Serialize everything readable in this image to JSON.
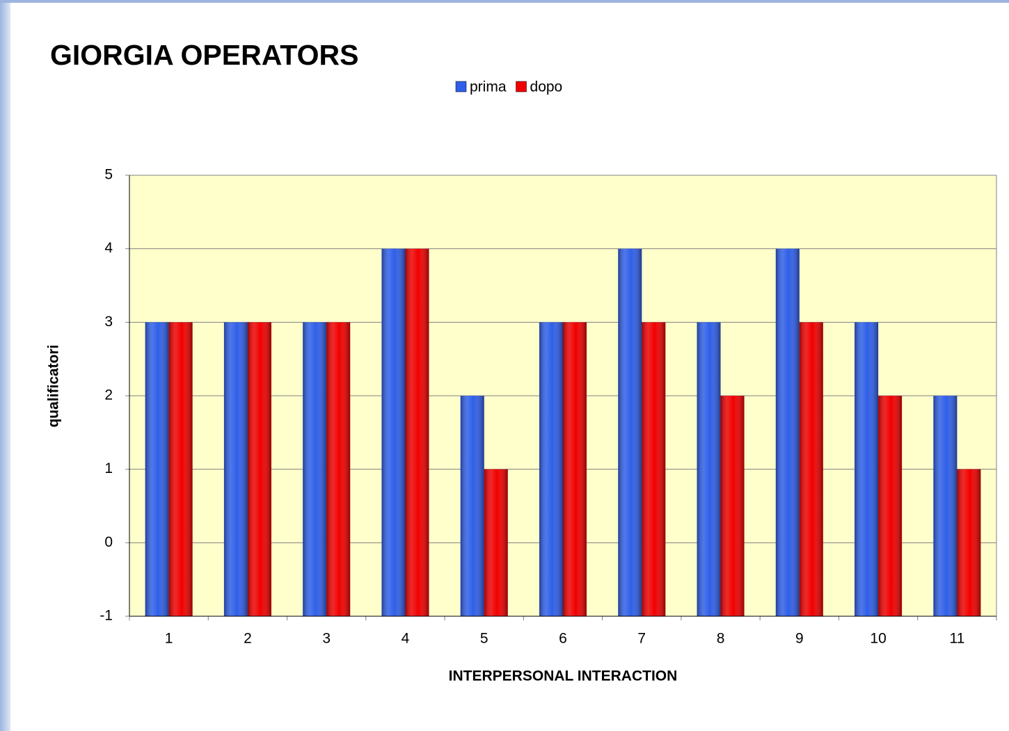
{
  "chart_data": {
    "type": "bar",
    "title": "GIORGIA  OPERATORS",
    "x_label": "INTERPERSONAL INTERACTION",
    "y_label": "qualificatori",
    "categories": [
      "1",
      "2",
      "3",
      "4",
      "5",
      "6",
      "7",
      "8",
      "9",
      "10",
      "11"
    ],
    "series": [
      {
        "name": "prima",
        "color": "#2f5fe8",
        "values": [
          3,
          3,
          3,
          4,
          2,
          3,
          4,
          3,
          4,
          3,
          2
        ]
      },
      {
        "name": "dopo",
        "color": "#f00000",
        "values": [
          3,
          3,
          3,
          4,
          1,
          3,
          3,
          2,
          3,
          2,
          1
        ]
      }
    ],
    "ylim": [
      -1,
      5
    ],
    "yticks": [
      -1,
      0,
      1,
      2,
      3,
      4,
      5
    ],
    "grid": true,
    "legend": "top"
  }
}
